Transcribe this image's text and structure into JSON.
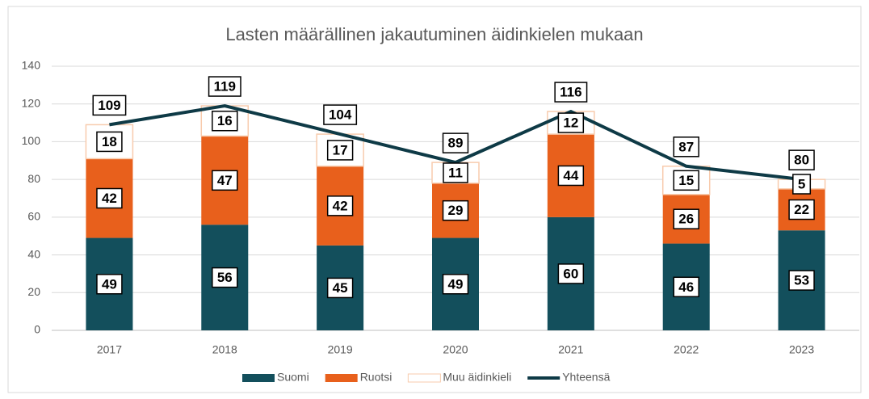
{
  "chart_data": {
    "type": "bar",
    "stacked": true,
    "title": "Lasten määrällinen jakautuminen äidinkielen mukaan",
    "categories": [
      "2017",
      "2018",
      "2019",
      "2020",
      "2021",
      "2022",
      "2023"
    ],
    "series": [
      {
        "name": "Suomi",
        "color": "#134f5c",
        "values": [
          49,
          56,
          45,
          49,
          60,
          46,
          53
        ]
      },
      {
        "name": "Ruotsi",
        "color": "#e8601c",
        "values": [
          42,
          47,
          42,
          29,
          44,
          26,
          22
        ]
      },
      {
        "name": "Muu äidinkieli",
        "color": "#f8cbad",
        "fill": "#ffffff",
        "values": [
          18,
          16,
          17,
          11,
          12,
          15,
          5
        ]
      },
      {
        "name": "Yhteensä",
        "type": "line",
        "color": "#0e3a46",
        "values": [
          109,
          119,
          104,
          89,
          116,
          87,
          80
        ]
      }
    ],
    "ylim": [
      0,
      140
    ],
    "yticks": [
      0,
      20,
      40,
      60,
      80,
      100,
      120,
      140
    ],
    "grid": true,
    "legend": "bottom"
  }
}
